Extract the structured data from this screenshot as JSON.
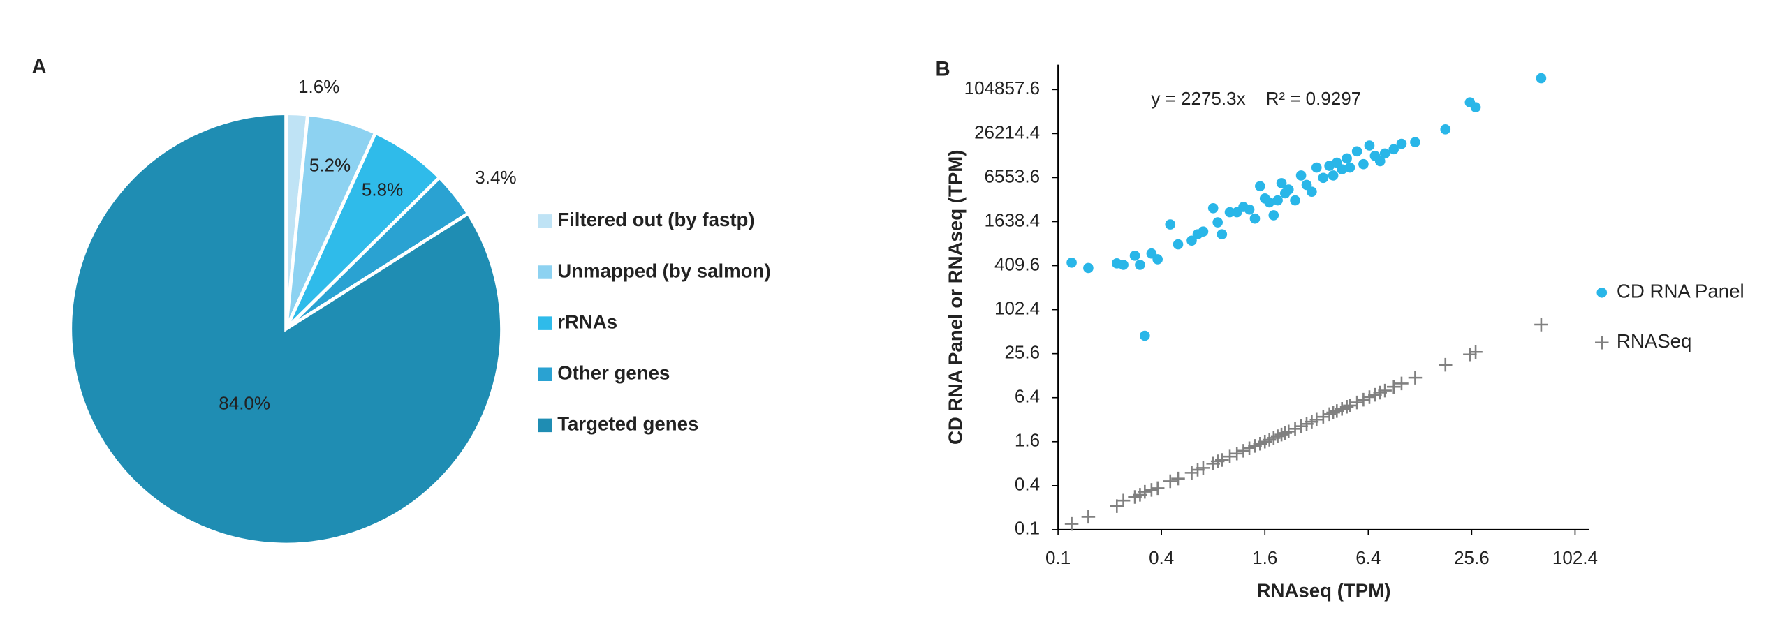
{
  "chart_data": [
    {
      "type": "pie",
      "panel_label": "A",
      "categories": [
        "Filtered out (by fastp)",
        "Unmapped (by salmon)",
        "rRNAs",
        "Other genes",
        "Targeted genes"
      ],
      "values": [
        1.6,
        5.2,
        5.8,
        3.4,
        84.0
      ],
      "value_labels": [
        "1.6%",
        "5.2%",
        "5.8%",
        "3.4%",
        "84.0%"
      ],
      "colors": [
        "#bfe3f5",
        "#8dd2f1",
        "#2fbbea",
        "#2aa2d2",
        "#1f8db3"
      ],
      "legend": "right"
    },
    {
      "type": "scatter",
      "panel_label": "B",
      "xlabel": "RNAseq (TPM)",
      "ylabel": "CD RNA Panel or RNAseq (TPM)",
      "annotations": [
        "y = 2275.3x",
        "R² = 0.9297"
      ],
      "xscale": "log",
      "yscale": "log",
      "xlim": [
        0.1,
        124
      ],
      "ylim": [
        0.1,
        230000
      ],
      "xticks": [
        0.1,
        0.4,
        1.6,
        6.4,
        25.6,
        102.4
      ],
      "yticks": [
        0.1,
        0.4,
        1.6,
        6.4,
        25.6,
        102.4,
        409.6,
        1638.4,
        6553.6,
        26214.4,
        104857.6
      ],
      "legend": "right",
      "x": [
        0.12,
        0.15,
        0.22,
        0.24,
        0.28,
        0.3,
        0.32,
        0.35,
        0.38,
        0.45,
        0.5,
        0.6,
        0.65,
        0.7,
        0.8,
        0.85,
        0.9,
        1.0,
        1.1,
        1.2,
        1.3,
        1.4,
        1.5,
        1.6,
        1.7,
        1.8,
        1.9,
        2.0,
        2.1,
        2.2,
        2.4,
        2.6,
        2.8,
        3.0,
        3.2,
        3.5,
        3.8,
        4.0,
        4.2,
        4.5,
        4.8,
        5.0,
        5.5,
        6.0,
        6.5,
        7.0,
        7.5,
        8.0,
        9.0,
        10.0,
        12.0,
        18.0,
        25.0,
        27.0,
        65.0
      ],
      "series": [
        {
          "name": "CD RNA Panel",
          "color": "#29b6e8",
          "marker": "circle",
          "values": [
            450,
            380,
            440,
            420,
            560,
            420,
            45,
            600,
            500,
            1500,
            800,
            900,
            1100,
            1200,
            2500,
            1600,
            1100,
            2200,
            2200,
            2600,
            2400,
            1800,
            5000,
            3400,
            3000,
            2000,
            3200,
            5500,
            4000,
            4500,
            3200,
            7000,
            5200,
            4200,
            9000,
            6500,
            9500,
            7000,
            10500,
            8500,
            12000,
            9000,
            15000,
            10000,
            18000,
            13000,
            11000,
            14000,
            16000,
            19000,
            20000,
            30000,
            70000,
            60000,
            150000
          ]
        },
        {
          "name": "RNASeq",
          "color": "#808080",
          "marker": "plus",
          "values": [
            0.12,
            0.15,
            0.21,
            0.25,
            0.28,
            0.3,
            0.33,
            0.35,
            0.37,
            0.46,
            0.5,
            0.6,
            0.66,
            0.7,
            0.8,
            0.86,
            0.9,
            1.0,
            1.1,
            1.2,
            1.3,
            1.4,
            1.5,
            1.6,
            1.7,
            1.8,
            1.9,
            2.0,
            2.1,
            2.2,
            2.4,
            2.6,
            2.8,
            3.0,
            3.2,
            3.5,
            3.8,
            4.0,
            4.2,
            4.5,
            4.8,
            5.0,
            5.5,
            6.0,
            6.5,
            7.0,
            7.5,
            8.0,
            9.0,
            10.0,
            12.0,
            18.0,
            25.0,
            27.0,
            64.0
          ]
        }
      ]
    }
  ]
}
